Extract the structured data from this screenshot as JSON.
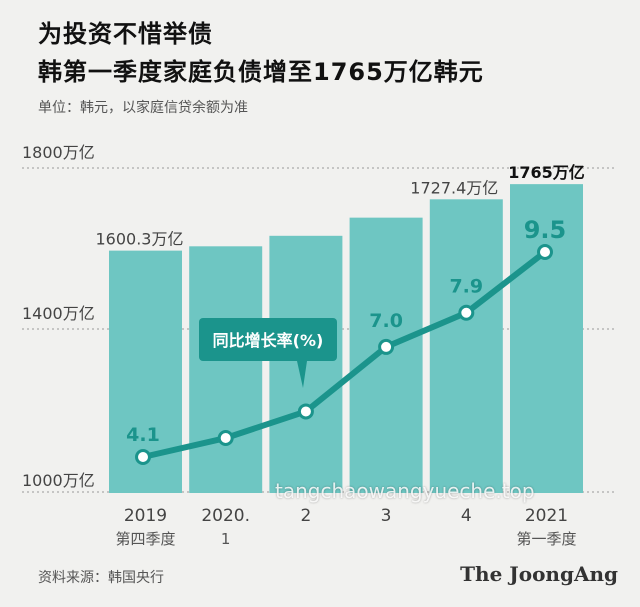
{
  "header": {
    "title_line1": "为投资不惜举债",
    "title_line2": "韩第一季度家庭负债增至1765万亿韩元",
    "unit_note": "单位：韩元，以家庭信贷余额为准"
  },
  "footer": {
    "source": "资料来源：韩国央行",
    "logo": "The JoongAng",
    "watermark": "tangchaowangyueche.top"
  },
  "colors": {
    "bar": "#6ec6c2",
    "line": "#1b948c",
    "label_box": "#1b948c",
    "background": "#f1f1ef"
  },
  "chart_data": {
    "type": "bar+line",
    "title": "韩第一季度家庭负债增至1765万亿韩元",
    "y_unit": "万亿",
    "ylim": [
      1000,
      1800
    ],
    "y_ticks": [
      {
        "value": 1800,
        "label": "1800万亿"
      },
      {
        "value": 1400,
        "label": "1400万亿"
      },
      {
        "value": 1000,
        "label": "1000万亿"
      }
    ],
    "categories": [
      {
        "top": "2019",
        "bottom": "第四季度"
      },
      {
        "top": "2020.",
        "bottom": "1"
      },
      {
        "top": "2",
        "bottom": ""
      },
      {
        "top": "3",
        "bottom": ""
      },
      {
        "top": "4",
        "bottom": ""
      },
      {
        "top": "2021",
        "bottom": "第一季度"
      }
    ],
    "bars": [
      {
        "value": 1600.3,
        "label": "1600.3万亿"
      },
      {
        "value": 1611,
        "label": ""
      },
      {
        "value": 1637,
        "label": ""
      },
      {
        "value": 1682,
        "label": ""
      },
      {
        "value": 1727.4,
        "label": "1727.4万亿"
      },
      {
        "value": 1765,
        "label": "1765万亿"
      }
    ],
    "growth_series": {
      "name": "同比增长率(%)",
      "values": [
        4.1,
        4.6,
        5.3,
        7.0,
        7.9,
        9.5
      ],
      "labels": [
        "4.1",
        "",
        "",
        "7.0",
        "7.9",
        "9.5"
      ],
      "range": [
        4.1,
        9.5
      ]
    }
  }
}
